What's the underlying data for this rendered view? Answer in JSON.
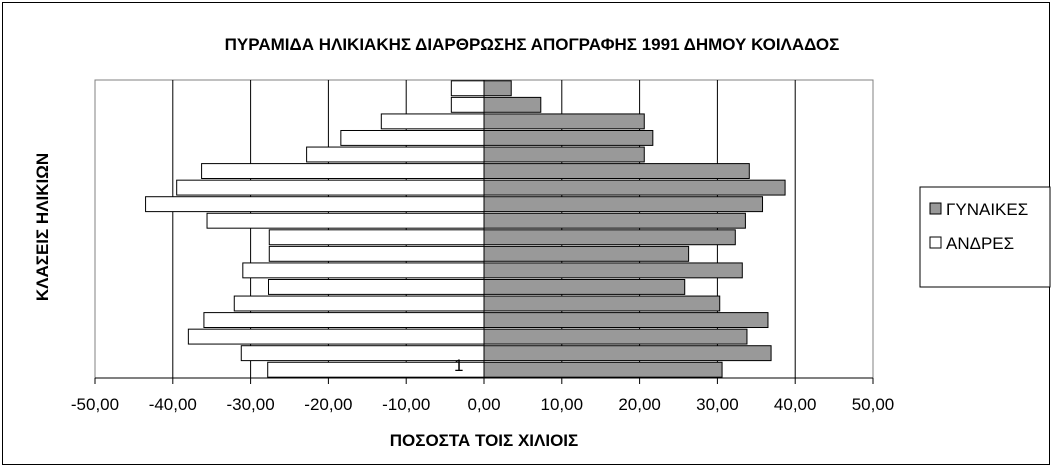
{
  "chart_data": {
    "type": "bar",
    "orientation": "horizontal-population-pyramid",
    "title": "ΠΥΡΑΜΙΔΑ ΗΛΙΚΙΑΚΗΣ ΔΙΑΡΘΡΩΣΗΣ ΑΠΟΓΡΑΦΗΣ 1991 ΔΗΜΟΥ ΚΟΙΛΑΔΟΣ",
    "xlabel": "ΠΟΣΟΣΤΑ ΤΟΙΣ ΧΙΛΙΟΙΣ",
    "ylabel": "ΚΛΑΣΕΙΣ ΗΛΙΚΙΩΝ",
    "xlim": [
      -50,
      50
    ],
    "xticks": [
      "-50,00",
      "-40,00",
      "-30,00",
      "-20,00",
      "-10,00",
      "0,00",
      "10,00",
      "20,00",
      "30,00",
      "40,00",
      "50,00"
    ],
    "grid": true,
    "legend_position": "right",
    "category_label_visible": "1",
    "series": [
      {
        "name": "ΓΥΝΑΙΚΕΣ",
        "color": "#999999",
        "values": [
          30.6,
          36.9,
          33.8,
          36.5,
          30.3,
          25.8,
          33.2,
          26.3,
          32.3,
          33.6,
          35.8,
          38.7,
          34.1,
          20.6,
          21.7,
          20.6,
          7.3,
          3.5
        ]
      },
      {
        "name": "ΑΝΔΡΕΣ",
        "color": "#ffffff",
        "values": [
          -27.8,
          -31.2,
          -38.0,
          -36.0,
          -32.1,
          -27.7,
          -31.0,
          -27.6,
          -27.6,
          -35.6,
          -43.5,
          -39.5,
          -36.3,
          -22.8,
          -18.4,
          -13.2,
          -4.2,
          -4.2
        ]
      }
    ]
  }
}
